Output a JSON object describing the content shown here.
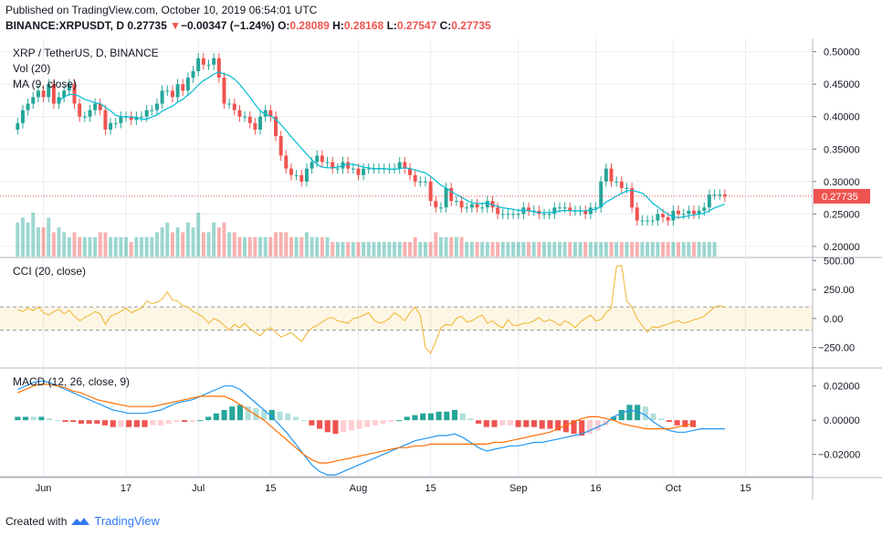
{
  "header": {
    "published": "Published on TradingView.com, October 10, 2019 06:54:01 UTC",
    "symbol": "BINANCE:XRPUSDT, D",
    "last": "0.27735",
    "change_arrow": "▼",
    "change": "−0.00347 (−1.24%)",
    "o_label": "O:",
    "o": "0.28089",
    "h_label": "H:",
    "h": "0.28168",
    "l_label": "L:",
    "l": "0.27547",
    "c_label": "C:",
    "c": "0.27735"
  },
  "footer": {
    "created_with": "Created with",
    "brand": "TradingView",
    "logo_icon": "tradingview-logo-icon"
  },
  "colors": {
    "up": "#26a69a",
    "down": "#ef5350",
    "ma": "#00bcd4",
    "cci": "#f0b429",
    "macd": "#2196f3",
    "signal": "#ff6d00",
    "grid": "#e9ebee"
  },
  "chart_data": [
    {
      "type": "candlestick",
      "title": "XRP / TetherUS, D, BINANCE",
      "legend": [
        "Vol (20)",
        "MA (9, close)"
      ],
      "ylim": [
        0.19,
        0.515
      ],
      "y_ticks": [
        "0.50000",
        "0.45000",
        "0.40000",
        "0.35000",
        "0.30000",
        "0.25000",
        "0.20000"
      ],
      "y_tick_values": [
        0.5,
        0.45,
        0.4,
        0.35,
        0.3,
        0.25,
        0.2
      ],
      "last_price_label": "0.27735",
      "last_price": 0.27735,
      "x_ticks": [
        "Jun",
        "17",
        "Jul",
        "15",
        "Aug",
        "15",
        "Sep",
        "16",
        "Oct",
        "15"
      ],
      "x_tick_dates": [
        "2019-06-01",
        "2019-06-17",
        "2019-07-01",
        "2019-07-15",
        "2019-08-01",
        "2019-08-15",
        "2019-09-01",
        "2019-09-16",
        "2019-10-01",
        "2019-10-15"
      ],
      "close_series": [
        0.39,
        0.41,
        0.42,
        0.43,
        0.44,
        0.43,
        0.45,
        0.42,
        0.43,
        0.44,
        0.45,
        0.42,
        0.4,
        0.4,
        0.41,
        0.42,
        0.41,
        0.38,
        0.39,
        0.39,
        0.4,
        0.4,
        0.395,
        0.4,
        0.4,
        0.41,
        0.41,
        0.42,
        0.44,
        0.44,
        0.43,
        0.45,
        0.44,
        0.46,
        0.47,
        0.49,
        0.48,
        0.48,
        0.49,
        0.46,
        0.42,
        0.42,
        0.41,
        0.4,
        0.4,
        0.39,
        0.38,
        0.4,
        0.41,
        0.4,
        0.37,
        0.34,
        0.32,
        0.31,
        0.31,
        0.3,
        0.32,
        0.33,
        0.34,
        0.33,
        0.33,
        0.32,
        0.32,
        0.33,
        0.32,
        0.32,
        0.31,
        0.32,
        0.32,
        0.32,
        0.32,
        0.32,
        0.32,
        0.32,
        0.33,
        0.32,
        0.31,
        0.3,
        0.3,
        0.3,
        0.27,
        0.26,
        0.26,
        0.29,
        0.27,
        0.27,
        0.26,
        0.26,
        0.265,
        0.26,
        0.26,
        0.27,
        0.26,
        0.25,
        0.25,
        0.25,
        0.25,
        0.25,
        0.26,
        0.255,
        0.255,
        0.25,
        0.25,
        0.25,
        0.26,
        0.26,
        0.26,
        0.255,
        0.255,
        0.255,
        0.25,
        0.26,
        0.26,
        0.3,
        0.32,
        0.3,
        0.3,
        0.29,
        0.29,
        0.26,
        0.24,
        0.24,
        0.24,
        0.24,
        0.25,
        0.245,
        0.24,
        0.255,
        0.25,
        0.25,
        0.255,
        0.25,
        0.255,
        0.26,
        0.28,
        0.28,
        0.28,
        0.277
      ],
      "volume": [
        7,
        8,
        7,
        9,
        6,
        6,
        8,
        5,
        6,
        5,
        4,
        5,
        4,
        4,
        4,
        4,
        5,
        5,
        4,
        4,
        4,
        4,
        3,
        4,
        4,
        4,
        4,
        5,
        6,
        7,
        5,
        6,
        5,
        7,
        6,
        9,
        5,
        5,
        7,
        6,
        7,
        5,
        5,
        4,
        4,
        4,
        4,
        4,
        4,
        4,
        5,
        5,
        5,
        4,
        4,
        4,
        5,
        4,
        4,
        4,
        4,
        3,
        3,
        3,
        3,
        3,
        3,
        3,
        3,
        3,
        3,
        3,
        3,
        3,
        3,
        3,
        3,
        4,
        3,
        3,
        3,
        5,
        4,
        4,
        4,
        4,
        4,
        3,
        3,
        3,
        3,
        3,
        3,
        3,
        3,
        3,
        3,
        3,
        3,
        3,
        3,
        3,
        3,
        3,
        3,
        3,
        3,
        3,
        3,
        3,
        3,
        3,
        3,
        3,
        3,
        3,
        3,
        3,
        3,
        3,
        3,
        3,
        3,
        3,
        3,
        3,
        3,
        3,
        3,
        3,
        3,
        3,
        3,
        3,
        3,
        3
      ]
    },
    {
      "type": "line",
      "title": "CCI (20, close)",
      "ylim": [
        -420,
        520
      ],
      "y_ticks": [
        "500.00",
        "250.00",
        "0.00",
        "−250.00"
      ],
      "y_tick_values": [
        500,
        250,
        0,
        -250
      ],
      "band": [
        -100,
        100
      ],
      "values": [
        80,
        60,
        90,
        70,
        100,
        50,
        30,
        60,
        80,
        40,
        70,
        20,
        -20,
        10,
        30,
        60,
        40,
        -50,
        20,
        40,
        60,
        90,
        50,
        70,
        90,
        150,
        130,
        140,
        170,
        230,
        160,
        150,
        110,
        100,
        60,
        40,
        10,
        -40,
        0,
        -20,
        -60,
        -100,
        -50,
        -80,
        -40,
        -90,
        -120,
        -150,
        -100,
        -80,
        -120,
        -160,
        -140,
        -120,
        -160,
        -200,
        -130,
        -80,
        -60,
        -30,
        0,
        10,
        -20,
        -30,
        -40,
        0,
        10,
        30,
        50,
        -10,
        -40,
        -30,
        0,
        50,
        20,
        -20,
        50,
        100,
        30,
        -250,
        -300,
        -200,
        -80,
        -50,
        -60,
        0,
        20,
        -30,
        -20,
        10,
        30,
        -40,
        -20,
        -60,
        -80,
        -10,
        -60,
        -60,
        -40,
        -40,
        -20,
        10,
        -30,
        -10,
        -30,
        -60,
        -20,
        -40,
        -80,
        -30,
        0,
        30,
        -20,
        -10,
        50,
        90,
        450,
        460,
        150,
        100,
        0,
        -60,
        -120,
        -70,
        -80,
        -60,
        -50,
        -30,
        -20,
        -40,
        -30,
        -10,
        0,
        20,
        60,
        100,
        110,
        100
      ]
    },
    {
      "type": "bar+line",
      "title": "MACD (12, 26, close, 9)",
      "ylim": [
        -0.033,
        0.03
      ],
      "y_ticks": [
        "0.02000",
        "0.00000",
        "−0.02000"
      ],
      "y_tick_values": [
        0.02,
        0,
        -0.02
      ],
      "macd": [
        0.018,
        0.02,
        0.022,
        0.023,
        0.022,
        0.02,
        0.018,
        0.016,
        0.014,
        0.012,
        0.01,
        0.008,
        0.006,
        0.005,
        0.004,
        0.004,
        0.004,
        0.005,
        0.006,
        0.008,
        0.01,
        0.011,
        0.012,
        0.014,
        0.016,
        0.018,
        0.02,
        0.02,
        0.018,
        0.014,
        0.01,
        0.006,
        0.002,
        -0.003,
        -0.008,
        -0.014,
        -0.02,
        -0.026,
        -0.03,
        -0.032,
        -0.032,
        -0.03,
        -0.028,
        -0.026,
        -0.024,
        -0.022,
        -0.02,
        -0.018,
        -0.016,
        -0.014,
        -0.012,
        -0.011,
        -0.01,
        -0.009,
        -0.009,
        -0.008,
        -0.01,
        -0.013,
        -0.016,
        -0.018,
        -0.017,
        -0.016,
        -0.015,
        -0.015,
        -0.014,
        -0.013,
        -0.013,
        -0.012,
        -0.011,
        -0.01,
        -0.009,
        -0.008,
        -0.006,
        -0.004,
        -0.002,
        0.002,
        0.004,
        0.006,
        0.005,
        0.003,
        -0.001,
        -0.004,
        -0.006,
        -0.007,
        -0.007,
        -0.006,
        -0.005,
        -0.005,
        -0.005,
        -0.005
      ],
      "signal": [
        0.016,
        0.018,
        0.02,
        0.021,
        0.021,
        0.02,
        0.019,
        0.017,
        0.016,
        0.014,
        0.012,
        0.011,
        0.01,
        0.009,
        0.008,
        0.008,
        0.008,
        0.008,
        0.009,
        0.01,
        0.011,
        0.012,
        0.013,
        0.014,
        0.014,
        0.014,
        0.014,
        0.012,
        0.009,
        0.006,
        0.003,
        0.0,
        -0.004,
        -0.008,
        -0.012,
        -0.016,
        -0.02,
        -0.023,
        -0.025,
        -0.025,
        -0.024,
        -0.023,
        -0.022,
        -0.021,
        -0.02,
        -0.019,
        -0.018,
        -0.017,
        -0.016,
        -0.016,
        -0.015,
        -0.015,
        -0.014,
        -0.014,
        -0.014,
        -0.014,
        -0.014,
        -0.014,
        -0.014,
        -0.014,
        -0.013,
        -0.013,
        -0.012,
        -0.011,
        -0.01,
        -0.009,
        -0.008,
        -0.007,
        -0.005,
        -0.003,
        -0.001,
        0.001,
        0.002,
        0.002,
        0.001,
        0.0,
        -0.002,
        -0.003,
        -0.004,
        -0.005,
        -0.005,
        -0.005,
        -0.005,
        -0.004,
        -0.003,
        -0.002
      ]
    }
  ]
}
